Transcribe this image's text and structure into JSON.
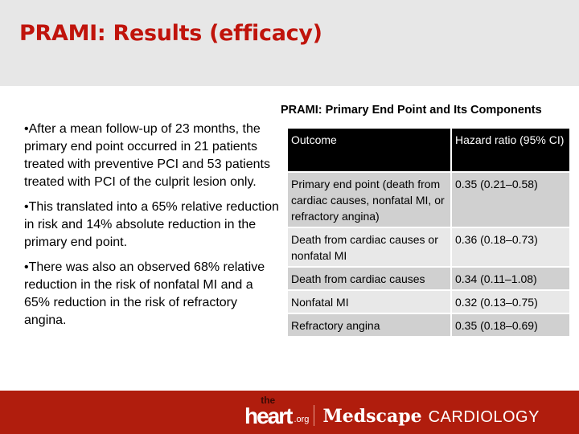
{
  "title": "PRAMI: Results (efficacy)",
  "bullets": [
    "•After a mean follow-up of 23 months, the primary end point occurred in 21 patients treated with preventive PCI and 53 patients treated with PCI of the culprit lesion only.",
    "•This translated into a 65% relative reduction in risk and 14% absolute reduction in the primary end point.",
    "•There was also an observed 68% relative reduction in the risk of nonfatal MI and a 65% reduction in the risk of refractory angina."
  ],
  "table": {
    "title": "PRAMI: Primary End Point and Its Components",
    "headers": [
      "Outcome",
      "Hazard ratio (95% CI)"
    ],
    "rows": [
      [
        "Primary end point (death from cardiac causes, nonfatal MI, or refractory angina)",
        "0.35 (0.21–0.58)"
      ],
      [
        "Death from cardiac causes or nonfatal MI",
        "0.36 (0.18–0.73)"
      ],
      [
        "Death from cardiac causes",
        "0.34 (0.11–1.08)"
      ],
      [
        "Nonfatal MI",
        "0.32 (0.13–0.75)"
      ],
      [
        "Refractory angina",
        "0.35 (0.18–0.69)"
      ]
    ]
  },
  "footer": {
    "the": "the",
    "heart": "heart",
    "org": ".org",
    "medscape": "Medscape",
    "cardiology": "CARDIOLOGY"
  },
  "colors": {
    "title": "#c0140c",
    "footer": "#b01d0d",
    "header_bg": "#e7e7e7"
  }
}
